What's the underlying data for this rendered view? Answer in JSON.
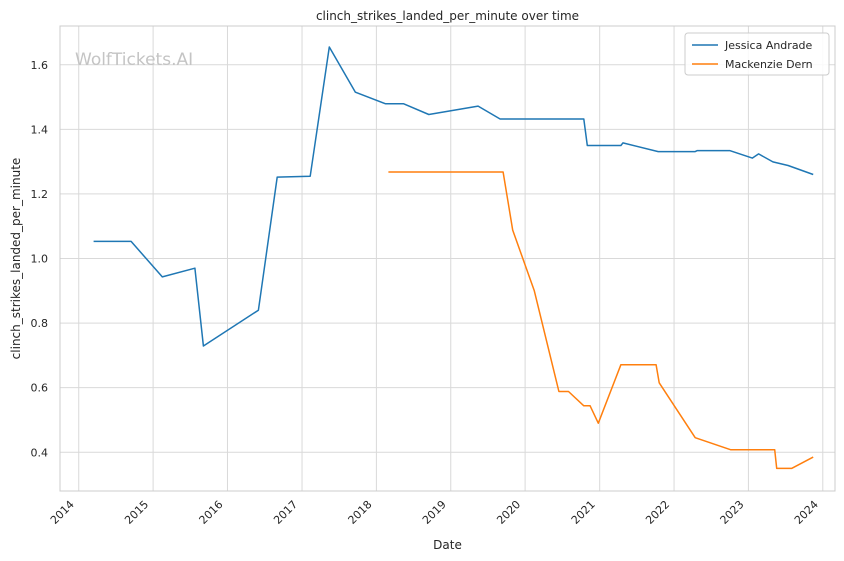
{
  "watermark": "WolfTickets.AI",
  "chart_data": {
    "type": "line",
    "title": "clinch_strikes_landed_per_minute over time",
    "xlabel": "Date",
    "ylabel": "clinch_strikes_landed_per_minute",
    "x_ticks": [
      "2014",
      "2015",
      "2016",
      "2017",
      "2018",
      "2019",
      "2020",
      "2021",
      "2022",
      "2023",
      "2024"
    ],
    "y_ticks": [
      "0.4",
      "0.6",
      "0.8",
      "1.0",
      "1.2",
      "1.4",
      "1.6"
    ],
    "xlim": [
      "2013-10-01",
      "2024-03-01"
    ],
    "ylim": [
      0.28,
      1.72
    ],
    "grid": true,
    "legend_position": "top-right",
    "series": [
      {
        "name": "Jessica Andrade",
        "color": "#1f77b4",
        "points": [
          [
            "2014-03-15",
            1.053
          ],
          [
            "2014-09-15",
            1.053
          ],
          [
            "2015-02-15",
            0.943
          ],
          [
            "2015-07-25",
            0.97
          ],
          [
            "2015-09-05",
            0.729
          ],
          [
            "2016-06-01",
            0.84
          ],
          [
            "2016-09-01",
            1.252
          ],
          [
            "2017-02-10",
            1.255
          ],
          [
            "2017-05-15",
            1.655
          ],
          [
            "2017-09-20",
            1.515
          ],
          [
            "2018-02-15",
            1.479
          ],
          [
            "2018-05-15",
            1.479
          ],
          [
            "2018-09-15",
            1.446
          ],
          [
            "2019-05-15",
            1.472
          ],
          [
            "2019-08-31",
            1.432
          ],
          [
            "2020-10-15",
            1.432
          ],
          [
            "2020-11-01",
            1.35
          ],
          [
            "2021-04-15",
            1.35
          ],
          [
            "2021-04-25",
            1.358
          ],
          [
            "2021-10-15",
            1.331
          ],
          [
            "2022-04-15",
            1.331
          ],
          [
            "2022-04-25",
            1.334
          ],
          [
            "2022-10-01",
            1.334
          ],
          [
            "2023-01-20",
            1.311
          ],
          [
            "2023-02-20",
            1.324
          ],
          [
            "2023-05-01",
            1.299
          ],
          [
            "2023-07-15",
            1.288
          ],
          [
            "2023-11-15",
            1.26
          ]
        ]
      },
      {
        "name": "Mackenzie Dern",
        "color": "#ff7f0e",
        "points": [
          [
            "2018-03-01",
            1.268
          ],
          [
            "2019-09-15",
            1.268
          ],
          [
            "2019-11-01",
            1.088
          ],
          [
            "2020-02-15",
            0.9
          ],
          [
            "2020-06-15",
            0.588
          ],
          [
            "2020-08-01",
            0.588
          ],
          [
            "2020-10-15",
            0.544
          ],
          [
            "2020-11-15",
            0.544
          ],
          [
            "2020-12-25",
            0.49
          ],
          [
            "2021-04-15",
            0.671
          ],
          [
            "2021-10-05",
            0.671
          ],
          [
            "2021-10-20",
            0.615
          ],
          [
            "2022-04-15",
            0.445
          ],
          [
            "2022-10-05",
            0.408
          ],
          [
            "2023-05-10",
            0.408
          ],
          [
            "2023-05-20",
            0.35
          ],
          [
            "2023-08-01",
            0.35
          ],
          [
            "2023-11-15",
            0.385
          ]
        ]
      }
    ]
  }
}
